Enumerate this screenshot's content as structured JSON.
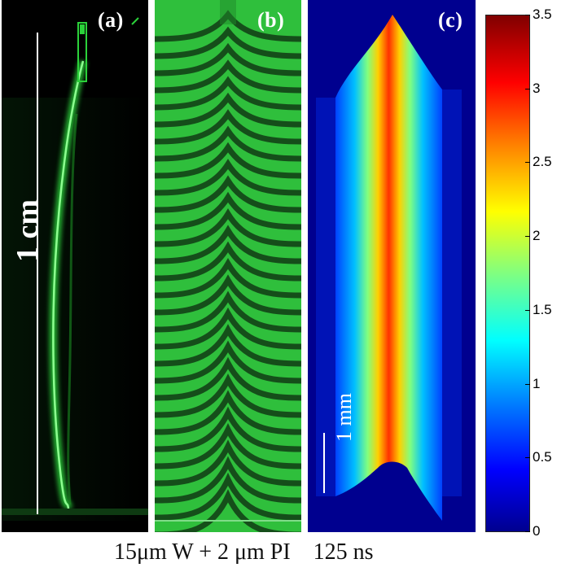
{
  "panels": [
    {
      "label": "(a)",
      "scale_text": "1 cm"
    },
    {
      "label": "(b)"
    },
    {
      "label": "(c)",
      "scale_text": "1 mm"
    }
  ],
  "colorbar": {
    "ticks": [
      "3.5",
      "3",
      "2.5",
      "2",
      "1.5",
      "1",
      "0.5",
      "0"
    ],
    "range": [
      0,
      3.5
    ]
  },
  "caption": "15μm W + 2 μm PI    125 ns",
  "colors": {
    "fringe_green": "#2ecc3a",
    "background_blue": "#00008f",
    "core_red": "#ff2000"
  }
}
